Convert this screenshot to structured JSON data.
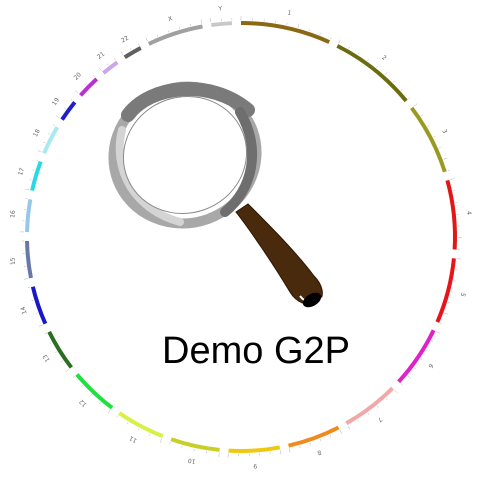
{
  "title": "Demo G2P",
  "icon": "magnifying-glass-icon",
  "chromosomes": [
    {
      "label": "1",
      "color": "#8b6914",
      "size": 249
    },
    {
      "label": "2",
      "color": "#6b6b10",
      "size": 243
    },
    {
      "label": "3",
      "color": "#9a9a22",
      "size": 198
    },
    {
      "label": "4",
      "color": "#e01818",
      "size": 191
    },
    {
      "label": "5",
      "color": "#e8141a",
      "size": 181
    },
    {
      "label": "6",
      "color": "#e020c8",
      "size": 171
    },
    {
      "label": "7",
      "color": "#f0a8a8",
      "size": 159
    },
    {
      "label": "8",
      "color": "#f08a1c",
      "size": 146
    },
    {
      "label": "9",
      "color": "#f0c812",
      "size": 141
    },
    {
      "label": "10",
      "color": "#c8d028",
      "size": 136
    },
    {
      "label": "11",
      "color": "#d8f048",
      "size": 135
    },
    {
      "label": "12",
      "color": "#20e040",
      "size": 133
    },
    {
      "label": "13",
      "color": "#2a6e22",
      "size": 115
    },
    {
      "label": "14",
      "color": "#1818c8",
      "size": 107
    },
    {
      "label": "15",
      "color": "#6878a8",
      "size": 102
    },
    {
      "label": "16",
      "color": "#98c8e8",
      "size": 90
    },
    {
      "label": "17",
      "color": "#28d8e8",
      "size": 83
    },
    {
      "label": "18",
      "color": "#a8e8f0",
      "size": 80
    },
    {
      "label": "19",
      "color": "#2020c8",
      "size": 59
    },
    {
      "label": "20",
      "color": "#b830d8",
      "size": 63
    },
    {
      "label": "21",
      "color": "#c8a8e8",
      "size": 48
    },
    {
      "label": "22",
      "color": "#606060",
      "size": 51
    },
    {
      "label": "X",
      "color": "#a0a0a0",
      "size": 155
    },
    {
      "label": "Y",
      "color": "#c8c8c8",
      "size": 57
    }
  ]
}
